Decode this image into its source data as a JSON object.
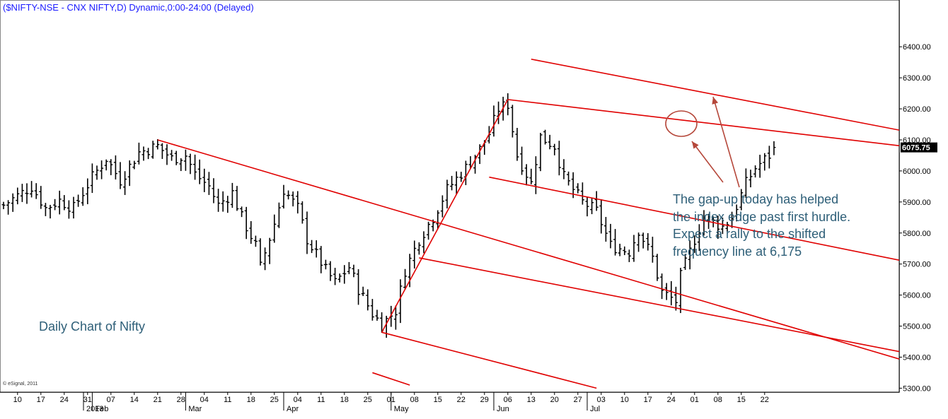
{
  "title": "($NIFTY-NSE - CNX NIFTY,D) Dynamic,0:00-24:00 (Delayed)",
  "chart_label": "Daily Chart of Nifty",
  "annotation_lines": [
    "The gap-up today has helped",
    "the index edge past first hurdle.",
    "Expect a rally to the shifted",
    "frequency line at 6,175"
  ],
  "credit": "© eSignal, 2011",
  "colors": {
    "bars": "#000000",
    "channel": "#e00000",
    "arrow": "#b5473a",
    "text": "#2e5f78",
    "title": "#1a1aff",
    "price_box": "#000000",
    "grid": "#000000"
  },
  "chart_data": {
    "type": "ohlc",
    "title": "($NIFTY-NSE - CNX NIFTY,D) Dynamic,0:00-24:00 (Delayed)",
    "ylim": [
      5280,
      6440
    ],
    "y_ticks": [
      5300,
      5400,
      5500,
      5600,
      5700,
      5800,
      5900,
      6000,
      6100,
      6200,
      6300,
      6400
    ],
    "y_tick_labels": [
      "5300.00",
      "5400.00",
      "5500.00",
      "5600.00",
      "5700.00",
      "5800.00",
      "5900.00",
      "6000.00",
      "6100.00",
      "6200.00",
      "6300.00",
      "6400.00"
    ],
    "last_price": 6075.75,
    "last_price_label": "6075.75",
    "x_tick_labels": [
      "10",
      "17",
      "24",
      "31",
      "07",
      "14",
      "21",
      "28",
      "04",
      "11",
      "18",
      "25",
      "04",
      "11",
      "18",
      "25",
      "01",
      "08",
      "15",
      "22",
      "29",
      "06",
      "13",
      "20",
      "27",
      "03",
      "10",
      "17",
      "24",
      "01",
      "08",
      "15",
      "22"
    ],
    "month_labels": [
      "2013",
      "Feb",
      "Mar",
      "Apr",
      "May",
      "Jun",
      "Jul"
    ],
    "close_path": [
      [
        "2013-01-07",
        5890
      ],
      [
        "2013-01-10",
        5920
      ],
      [
        "2013-01-15",
        5950
      ],
      [
        "2013-01-18",
        5880
      ],
      [
        "2013-01-23",
        5905
      ],
      [
        "2013-01-28",
        5880
      ],
      [
        "2013-02-01",
        5980
      ],
      [
        "2013-02-06",
        6040
      ],
      [
        "2013-02-11",
        5970
      ],
      [
        "2013-02-15",
        6060
      ],
      [
        "2013-02-21",
        6080
      ],
      [
        "2013-02-26",
        6040
      ],
      [
        "2013-03-01",
        6050
      ],
      [
        "2013-03-05",
        5990
      ],
      [
        "2013-03-08",
        5950
      ],
      [
        "2013-03-12",
        5890
      ],
      [
        "2013-03-15",
        5930
      ],
      [
        "2013-03-19",
        5850
      ],
      [
        "2013-03-22",
        5760
      ],
      [
        "2013-03-25",
        5690
      ],
      [
        "2013-03-28",
        5830
      ],
      [
        "2013-04-01",
        5940
      ],
      [
        "2013-04-04",
        5880
      ],
      [
        "2013-04-08",
        5780
      ],
      [
        "2013-04-12",
        5680
      ],
      [
        "2013-04-16",
        5640
      ],
      [
        "2013-04-19",
        5690
      ],
      [
        "2013-04-23",
        5620
      ],
      [
        "2013-04-26",
        5540
      ],
      [
        "2013-04-30",
        5505
      ],
      [
        "2013-05-03",
        5550
      ],
      [
        "2013-05-07",
        5680
      ],
      [
        "2013-05-10",
        5780
      ],
      [
        "2013-05-15",
        5850
      ],
      [
        "2013-05-20",
        5940
      ],
      [
        "2013-05-24",
        6010
      ],
      [
        "2013-05-29",
        6070
      ],
      [
        "2013-06-01",
        6120
      ],
      [
        "2013-06-04",
        6200
      ],
      [
        "2013-06-06",
        6215
      ],
      [
        "2013-06-10",
        6050
      ],
      [
        "2013-06-13",
        5960
      ],
      [
        "2013-06-17",
        6110
      ],
      [
        "2013-06-20",
        6080
      ],
      [
        "2013-06-24",
        5980
      ],
      [
        "2013-06-28",
        5900
      ],
      [
        "2013-07-03",
        5870
      ],
      [
        "2013-07-08",
        5760
      ],
      [
        "2013-07-12",
        5740
      ],
      [
        "2013-07-16",
        5810
      ],
      [
        "2013-07-19",
        5720
      ],
      [
        "2013-07-23",
        5610
      ],
      [
        "2013-07-26",
        5580
      ],
      [
        "2013-07-29",
        5660
      ],
      [
        "2013-08-01",
        5780
      ],
      [
        "2013-08-05",
        5850
      ],
      [
        "2013-08-09",
        5820
      ],
      [
        "2013-08-13",
        5850
      ],
      [
        "2013-08-16",
        5960
      ],
      [
        "2013-08-20",
        6010
      ],
      [
        "2013-08-23",
        6050
      ],
      [
        "2013-08-26",
        6075.75
      ]
    ],
    "trendlines": [
      {
        "name": "",
        "points": [
          [
            "2013-02-21",
            6100
          ],
          [
            "2013-10-31",
            5300
          ]
        ]
      },
      {
        "name": "",
        "points": [
          [
            "2013-04-30",
            5480
          ],
          [
            "2013-06-06",
            6230
          ]
        ]
      },
      {
        "name": "",
        "points": [
          [
            "2013-04-30",
            5480
          ],
          [
            "2013-07-03",
            5300
          ]
        ]
      },
      {
        "name": "",
        "points": [
          [
            "2013-04-26",
            5350
          ],
          [
            "2013-05-08",
            5310
          ]
        ]
      },
      {
        "name": "",
        "points": [
          [
            "2013-05-10",
            5720
          ],
          [
            "2013-11-27",
            5300
          ]
        ]
      },
      {
        "name": "",
        "points": [
          [
            "2013-06-06",
            6230
          ],
          [
            "2013-11-27",
            6010
          ]
        ]
      },
      {
        "name": "",
        "points": [
          [
            "2013-06-13",
            6360
          ],
          [
            "2013-11-27",
            6015
          ]
        ]
      },
      {
        "name": "",
        "points": [
          [
            "2013-06-01",
            5980
          ],
          [
            "2013-11-27",
            5590
          ]
        ]
      }
    ],
    "annotations": [
      "The gap-up today has helped the index edge past first hurdle. Expect a rally to the shifted frequency line at 6,175",
      "Daily Chart of Nifty"
    ]
  }
}
